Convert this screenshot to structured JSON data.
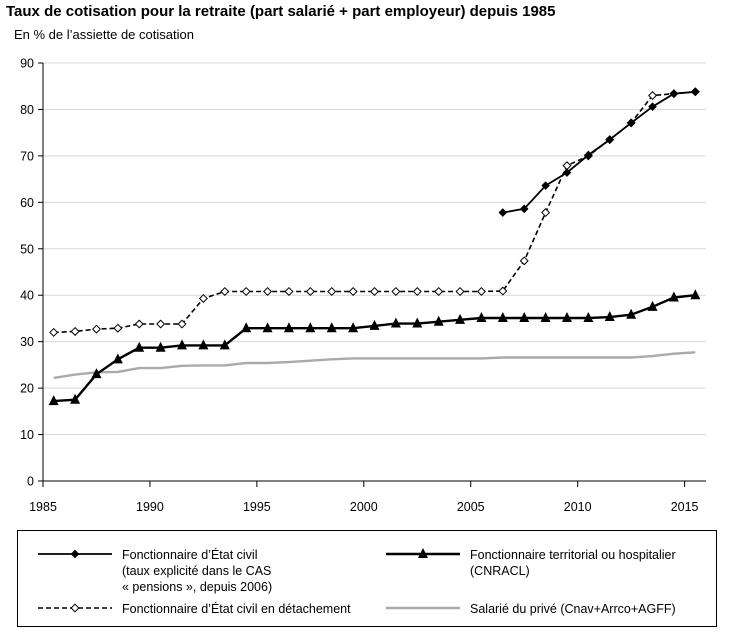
{
  "title": "Taux de cotisation pour la retraite (part salarié + part employeur) depuis 1985",
  "subtitle": "En % de l’assiette de cotisation",
  "chart_data": {
    "type": "line",
    "title": "Taux de cotisation pour la retraite (part salarié + part employeur) depuis 1985",
    "ylabel": "En % de l’assiette de cotisation",
    "xlabel": "",
    "xlim": [
      1985,
      2016
    ],
    "ylim": [
      0,
      90
    ],
    "xticks": [
      1985,
      1990,
      1995,
      2000,
      2005,
      2010,
      2015
    ],
    "yticks": [
      0,
      10,
      20,
      30,
      40,
      50,
      60,
      70,
      80,
      90
    ],
    "grid": "horizontal",
    "legend_position": "bottom",
    "series": [
      {
        "name": "Fonctionnaire d’État civil\n(taux explicité dans le CAS\n« pensions », depuis 2006)",
        "style": "solid-diamond",
        "color": "#000000",
        "x": [
          2006.5,
          2007.5,
          2008.5,
          2009.5,
          2010.5,
          2011.5,
          2012.5,
          2013.5,
          2014.5,
          2015.5
        ],
        "y": [
          57.8,
          58.6,
          63.6,
          66.4,
          70.2,
          73.5,
          77.1,
          80.6,
          83.4,
          83.8
        ]
      },
      {
        "name": "Fonctionnaire d’État civil en détachement",
        "style": "dashed-open-diamond",
        "color": "#000000",
        "x": [
          1985.5,
          1986.5,
          1987.5,
          1988.5,
          1989.5,
          1990.5,
          1991.5,
          1992.5,
          1993.5,
          1994.5,
          1995.5,
          1996.5,
          1997.5,
          1998.5,
          1999.5,
          2000.5,
          2001.5,
          2002.5,
          2003.5,
          2004.5,
          2005.5,
          2006.5,
          2007.5,
          2008.5,
          2009.5,
          2010.5,
          2011.5,
          2012.5,
          2013.5,
          2014.5,
          2015.5
        ],
        "y": [
          32.0,
          32.2,
          32.7,
          32.9,
          33.8,
          33.8,
          33.8,
          39.3,
          40.8,
          40.8,
          40.8,
          40.8,
          40.8,
          40.8,
          40.8,
          40.8,
          40.8,
          40.8,
          40.8,
          40.8,
          40.8,
          40.9,
          47.4,
          57.8,
          67.9,
          70.0,
          73.5,
          77.1,
          83.0,
          83.4,
          83.8
        ]
      },
      {
        "name": "Fonctionnaire territorial ou hospitalier\n(CNRACL)",
        "style": "solid-thick-triangle",
        "color": "#000000",
        "x": [
          1985.5,
          1986.5,
          1987.5,
          1988.5,
          1989.5,
          1990.5,
          1991.5,
          1992.5,
          1993.5,
          1994.5,
          1995.5,
          1996.5,
          1997.5,
          1998.5,
          1999.5,
          2000.5,
          2001.5,
          2002.5,
          2003.5,
          2004.5,
          2005.5,
          2006.5,
          2007.5,
          2008.5,
          2009.5,
          2010.5,
          2011.5,
          2012.5,
          2013.5,
          2014.5,
          2015.5
        ],
        "y": [
          17.2,
          17.5,
          23.0,
          26.2,
          28.7,
          28.7,
          29.2,
          29.2,
          29.2,
          32.9,
          32.9,
          32.9,
          32.9,
          32.9,
          32.9,
          33.4,
          33.9,
          33.9,
          34.3,
          34.7,
          35.1,
          35.1,
          35.1,
          35.1,
          35.1,
          35.1,
          35.3,
          35.8,
          37.5,
          39.5,
          40.0
        ]
      },
      {
        "name": "Salarié du privé (Cnav+Arrco+AGFF)",
        "style": "solid-gray",
        "color": "#aaaaaa",
        "x": [
          1985.5,
          1986.5,
          1987.5,
          1988.5,
          1989.5,
          1990.5,
          1991.5,
          1992.5,
          1993.5,
          1994.5,
          1995.5,
          1996.5,
          1997.5,
          1998.5,
          1999.5,
          2000.5,
          2001.5,
          2002.5,
          2003.5,
          2004.5,
          2005.5,
          2006.5,
          2007.5,
          2008.5,
          2009.5,
          2010.5,
          2011.5,
          2012.5,
          2013.5,
          2014.5,
          2015.5
        ],
        "y": [
          22.2,
          22.9,
          23.4,
          23.5,
          24.3,
          24.3,
          24.8,
          24.9,
          24.9,
          25.4,
          25.4,
          25.6,
          25.9,
          26.2,
          26.4,
          26.4,
          26.4,
          26.4,
          26.4,
          26.4,
          26.4,
          26.6,
          26.6,
          26.6,
          26.6,
          26.6,
          26.6,
          26.6,
          26.9,
          27.4,
          27.7
        ]
      }
    ]
  }
}
